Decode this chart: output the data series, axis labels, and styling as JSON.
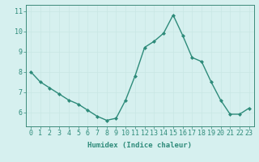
{
  "x": [
    0,
    1,
    2,
    3,
    4,
    5,
    6,
    7,
    8,
    9,
    10,
    11,
    12,
    13,
    14,
    15,
    16,
    17,
    18,
    19,
    20,
    21,
    22,
    23
  ],
  "y": [
    8.0,
    7.5,
    7.2,
    6.9,
    6.6,
    6.4,
    6.1,
    5.8,
    5.6,
    5.7,
    6.6,
    7.8,
    9.2,
    9.5,
    9.9,
    10.8,
    9.8,
    8.7,
    8.5,
    7.5,
    6.6,
    5.9,
    5.9,
    6.2
  ],
  "line_color": "#2e8b7a",
  "marker": "D",
  "marker_size": 2.0,
  "bg_color": "#d6f0ef",
  "grid_color": "#c8e6e4",
  "xlabel": "Humidex (Indice chaleur)",
  "ylim": [
    5.3,
    11.3
  ],
  "xlim": [
    -0.5,
    23.5
  ],
  "yticks": [
    6,
    7,
    8,
    9,
    10,
    11
  ],
  "xticks": [
    0,
    1,
    2,
    3,
    4,
    5,
    6,
    7,
    8,
    9,
    10,
    11,
    12,
    13,
    14,
    15,
    16,
    17,
    18,
    19,
    20,
    21,
    22,
    23
  ],
  "xlabel_fontsize": 6.5,
  "tick_fontsize": 6.0,
  "line_width": 1.0,
  "spine_color": "#3d8a7a"
}
